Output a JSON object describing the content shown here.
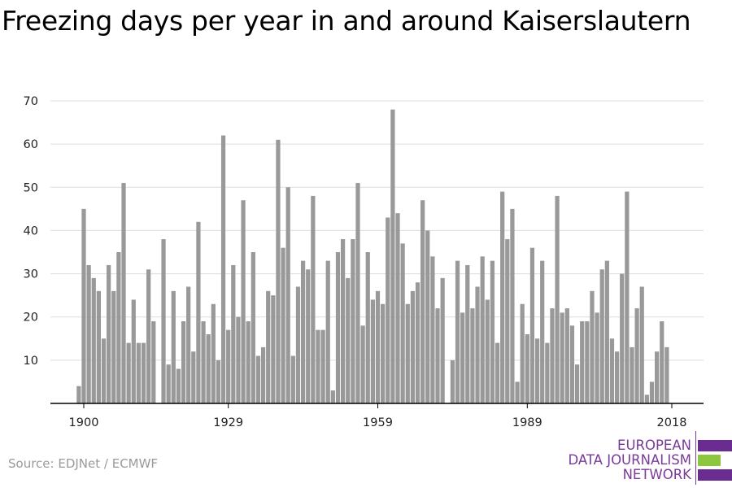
{
  "title": "Freezing days per year in and around Kaiserslautern",
  "source": "Source: EDJNet / ECMWF",
  "logo": {
    "lines": [
      "EUROPEAN",
      "DATA JOURNALISM",
      "NETWORK"
    ],
    "colors": {
      "purple": "#6b2c91",
      "green": "#8dc63f"
    }
  },
  "colors": {
    "bar": "#999999",
    "grid": "#dddddd",
    "axis": "#000000"
  },
  "chart_data": {
    "type": "bar",
    "title": "Freezing days per year in and around Kaiserslautern",
    "xlabel": "",
    "ylabel": "",
    "ylim": [
      0,
      70
    ],
    "yticks": [
      10,
      20,
      30,
      40,
      50,
      60,
      70
    ],
    "xticks": [
      1900,
      1929,
      1959,
      1989,
      2018
    ],
    "grid": true,
    "x": [
      1899,
      1900,
      1901,
      1902,
      1903,
      1904,
      1905,
      1906,
      1907,
      1908,
      1909,
      1910,
      1911,
      1912,
      1913,
      1914,
      1915,
      1916,
      1917,
      1918,
      1919,
      1920,
      1921,
      1922,
      1923,
      1924,
      1925,
      1926,
      1927,
      1928,
      1929,
      1930,
      1931,
      1932,
      1933,
      1934,
      1935,
      1936,
      1937,
      1938,
      1939,
      1940,
      1941,
      1942,
      1943,
      1944,
      1945,
      1946,
      1947,
      1948,
      1949,
      1950,
      1951,
      1952,
      1953,
      1954,
      1955,
      1956,
      1957,
      1958,
      1959,
      1960,
      1961,
      1962,
      1963,
      1964,
      1965,
      1966,
      1967,
      1968,
      1969,
      1970,
      1971,
      1972,
      1973,
      1974,
      1975,
      1976,
      1977,
      1978,
      1979,
      1980,
      1981,
      1982,
      1983,
      1984,
      1985,
      1986,
      1987,
      1988,
      1989,
      1990,
      1991,
      1992,
      1993,
      1994,
      1995,
      1996,
      1997,
      1998,
      1999,
      2000,
      2001,
      2002,
      2003,
      2004,
      2005,
      2006,
      2007,
      2008,
      2009,
      2010,
      2011,
      2012,
      2013,
      2014,
      2015,
      2016,
      2017,
      2018
    ],
    "values": [
      4,
      45,
      32,
      29,
      26,
      15,
      32,
      26,
      35,
      51,
      14,
      24,
      14,
      14,
      31,
      19,
      0,
      38,
      9,
      26,
      8,
      19,
      27,
      12,
      42,
      19,
      16,
      23,
      10,
      62,
      17,
      32,
      20,
      47,
      19,
      35,
      11,
      13,
      26,
      25,
      61,
      36,
      50,
      11,
      27,
      33,
      31,
      48,
      17,
      17,
      33,
      3,
      35,
      38,
      29,
      38,
      51,
      18,
      35,
      24,
      26,
      23,
      43,
      68,
      44,
      37,
      23,
      26,
      28,
      47,
      40,
      34,
      22,
      29,
      0,
      10,
      33,
      21,
      32,
      22,
      27,
      34,
      24,
      33,
      14,
      49,
      38,
      45,
      5,
      23,
      16,
      36,
      15,
      33,
      14,
      22,
      48,
      21,
      22,
      18,
      9,
      19,
      19,
      26,
      21,
      31,
      33,
      15,
      12,
      30,
      49,
      13,
      22,
      27,
      2,
      5,
      12,
      19,
      13,
      0
    ]
  }
}
